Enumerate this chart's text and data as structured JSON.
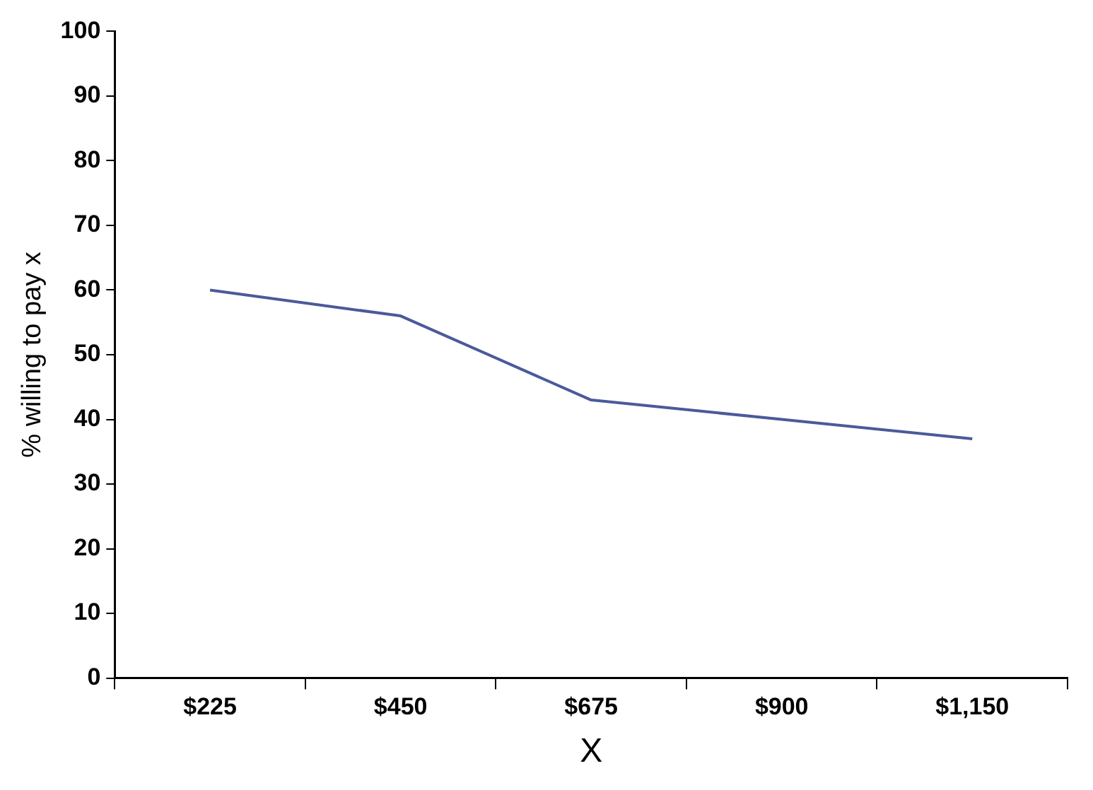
{
  "chart_data": {
    "type": "line",
    "xlabel": "X",
    "ylabel": "% willing to pay x",
    "categories": [
      "$225",
      "$450",
      "$675",
      "$900",
      "$1,150"
    ],
    "series": [
      {
        "color": "#4a5a9a",
        "values": [
          60,
          56,
          43,
          40,
          37
        ]
      }
    ],
    "ylim": [
      0,
      100
    ],
    "yticks": [
      0,
      10,
      20,
      30,
      40,
      50,
      60,
      70,
      80,
      90,
      100
    ],
    "grid": false,
    "legend": false,
    "marker": "none",
    "line_style": "solid"
  }
}
